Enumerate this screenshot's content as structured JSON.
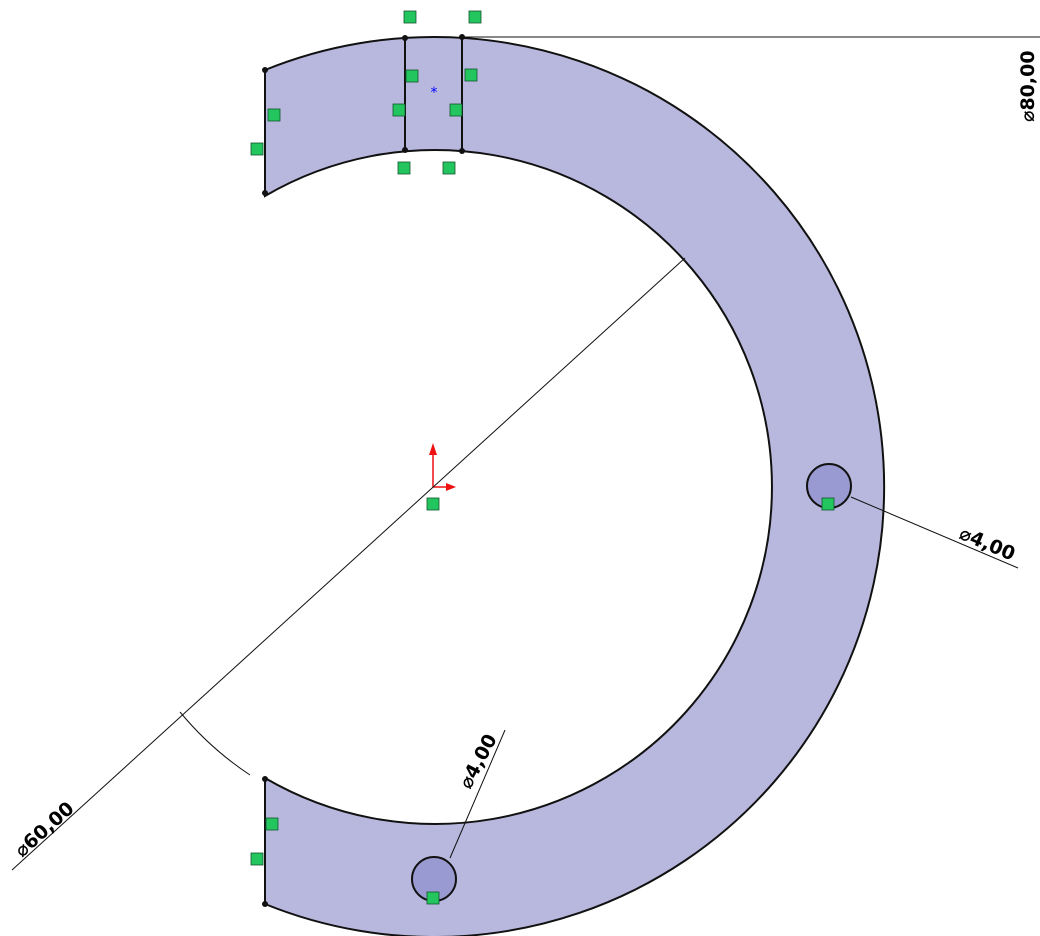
{
  "dimensions": {
    "outer_diameter": "⌀80,00",
    "inner_diameter": "⌀60,00",
    "hole_right_diameter": "⌀4,00",
    "hole_bottom_diameter": "⌀4,00"
  }
}
